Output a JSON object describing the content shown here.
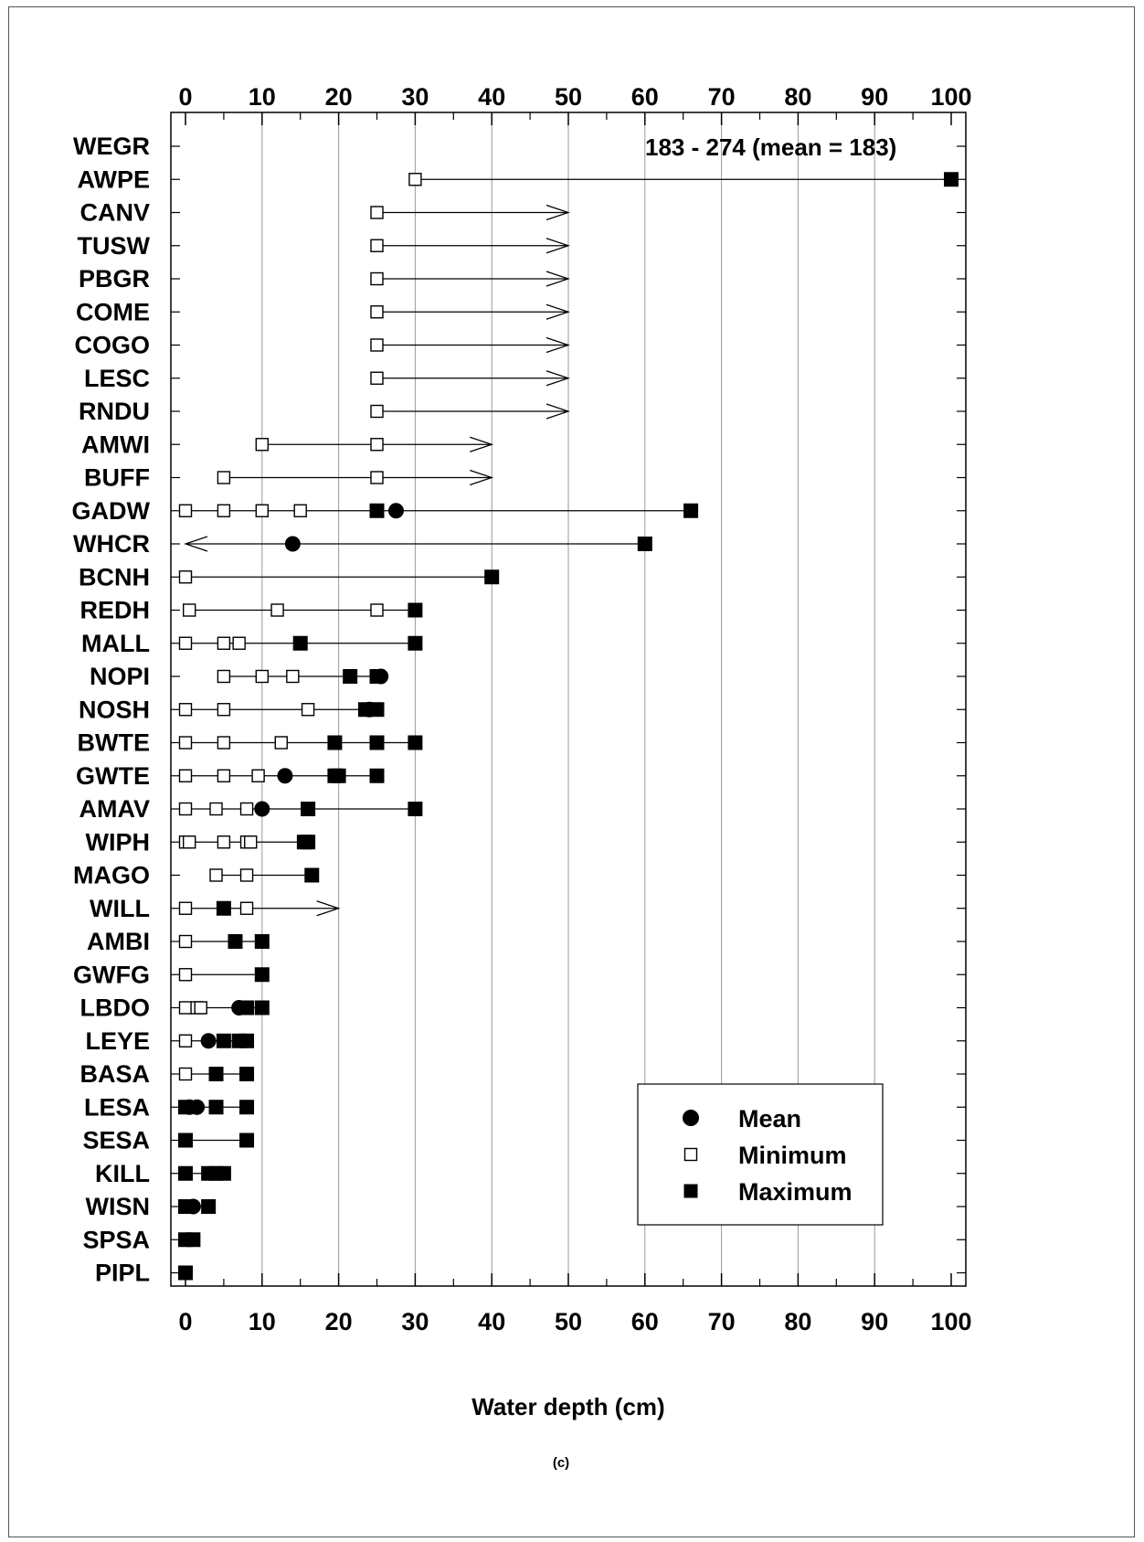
{
  "chart_data": {
    "type": "scatter",
    "title": "",
    "xlabel": "Water depth (cm)",
    "panel_label": "(c)",
    "xlim": [
      -2,
      102
    ],
    "xticks": [
      0,
      10,
      20,
      30,
      40,
      50,
      60,
      70,
      80,
      90,
      100
    ],
    "minor_xticks": [
      5,
      15,
      25,
      35,
      45,
      55,
      65,
      75,
      85,
      95
    ],
    "grid": "vertical",
    "legend_position": "bottom-right",
    "legend": [
      {
        "name": "Mean",
        "marker": "circle"
      },
      {
        "name": "Minimum",
        "marker": "open-square"
      },
      {
        "name": "Maximum",
        "marker": "filled-square"
      }
    ],
    "annotation": {
      "text": "183 - 274 (mean = 183)",
      "species": "WEGR"
    },
    "species": [
      {
        "code": "WEGR",
        "min": [],
        "max": [],
        "mean": [],
        "range": null,
        "arrow": null
      },
      {
        "code": "AWPE",
        "min": [
          30
        ],
        "max": [
          100
        ],
        "mean": [],
        "range": [
          30,
          100
        ],
        "arrow": null
      },
      {
        "code": "CANV",
        "min": [
          25
        ],
        "max": [],
        "mean": [],
        "range": [
          25,
          50
        ],
        "arrow": "right"
      },
      {
        "code": "TUSW",
        "min": [
          25
        ],
        "max": [],
        "mean": [],
        "range": [
          25,
          50
        ],
        "arrow": "right"
      },
      {
        "code": "PBGR",
        "min": [
          25
        ],
        "max": [],
        "mean": [],
        "range": [
          25,
          50
        ],
        "arrow": "right"
      },
      {
        "code": "COME",
        "min": [
          25
        ],
        "max": [],
        "mean": [],
        "range": [
          25,
          50
        ],
        "arrow": "right"
      },
      {
        "code": "COGO",
        "min": [
          25
        ],
        "max": [],
        "mean": [],
        "range": [
          25,
          50
        ],
        "arrow": "right"
      },
      {
        "code": "LESC",
        "min": [
          25
        ],
        "max": [],
        "mean": [],
        "range": [
          25,
          50
        ],
        "arrow": "right"
      },
      {
        "code": "RNDU",
        "min": [
          25
        ],
        "max": [],
        "mean": [],
        "range": [
          25,
          50
        ],
        "arrow": "right"
      },
      {
        "code": "AMWI",
        "min": [
          10,
          25
        ],
        "max": [],
        "mean": [],
        "range": [
          10,
          40
        ],
        "arrow": "right"
      },
      {
        "code": "BUFF",
        "min": [
          5,
          25
        ],
        "max": [],
        "mean": [],
        "range": [
          5,
          40
        ],
        "arrow": "right"
      },
      {
        "code": "GADW",
        "min": [
          0,
          5,
          10,
          15
        ],
        "max": [
          25,
          66
        ],
        "mean": [
          27.5
        ],
        "range": [
          0,
          66
        ],
        "arrow": null
      },
      {
        "code": "WHCR",
        "min": [],
        "max": [
          60
        ],
        "mean": [
          14
        ],
        "range": [
          0,
          60
        ],
        "arrow": "left"
      },
      {
        "code": "BCNH",
        "min": [
          0
        ],
        "max": [
          40
        ],
        "mean": [],
        "range": [
          0,
          40
        ],
        "arrow": null
      },
      {
        "code": "REDH",
        "min": [
          0.5,
          12,
          25
        ],
        "max": [
          30
        ],
        "mean": [],
        "range": [
          0.5,
          30
        ],
        "arrow": null
      },
      {
        "code": "MALL",
        "min": [
          0,
          5,
          7
        ],
        "max": [
          15,
          30
        ],
        "mean": [],
        "range": [
          0,
          30
        ],
        "arrow": null
      },
      {
        "code": "NOPI",
        "min": [
          5,
          10,
          14
        ],
        "max": [
          21.5,
          25
        ],
        "mean": [
          25.5
        ],
        "range": [
          5,
          25.5
        ],
        "arrow": null
      },
      {
        "code": "NOSH",
        "min": [
          0,
          5,
          16
        ],
        "max": [
          23.5,
          25
        ],
        "mean": [
          24
        ],
        "range": [
          0,
          25
        ],
        "arrow": null
      },
      {
        "code": "BWTE",
        "min": [
          0,
          5,
          12.5
        ],
        "max": [
          19.5,
          25,
          30
        ],
        "mean": [],
        "range": [
          0,
          30
        ],
        "arrow": null
      },
      {
        "code": "GWTE",
        "min": [
          0,
          5,
          9.5
        ],
        "max": [
          19.5,
          20,
          25
        ],
        "mean": [
          13
        ],
        "range": [
          0,
          25
        ],
        "arrow": null
      },
      {
        "code": "AMAV",
        "min": [
          0,
          4,
          8
        ],
        "max": [
          16,
          30
        ],
        "mean": [
          10
        ],
        "range": [
          0,
          30
        ],
        "arrow": null
      },
      {
        "code": "WIPH",
        "min": [
          0,
          0.5,
          5,
          8,
          8.5
        ],
        "max": [
          15.5,
          16
        ],
        "mean": [],
        "range": [
          0,
          16
        ],
        "arrow": null
      },
      {
        "code": "MAGO",
        "min": [
          4,
          8
        ],
        "max": [
          16.5
        ],
        "mean": [],
        "range": [
          4,
          16.5
        ],
        "arrow": null
      },
      {
        "code": "WILL",
        "min": [
          0,
          8
        ],
        "max": [
          5
        ],
        "mean": [],
        "range": [
          0,
          20
        ],
        "arrow": "right"
      },
      {
        "code": "AMBI",
        "min": [
          0
        ],
        "max": [
          6.5,
          10
        ],
        "mean": [],
        "range": [
          0,
          10
        ],
        "arrow": null
      },
      {
        "code": "GWFG",
        "min": [
          0
        ],
        "max": [
          10
        ],
        "mean": [],
        "range": [
          0,
          10
        ],
        "arrow": null
      },
      {
        "code": "LBDO",
        "min": [
          0,
          1.5,
          2
        ],
        "max": [
          8,
          10
        ],
        "mean": [
          7
        ],
        "range": [
          0,
          10
        ],
        "arrow": null
      },
      {
        "code": "LEYE",
        "min": [
          0
        ],
        "max": [
          5,
          7,
          8
        ],
        "mean": [
          3
        ],
        "range": [
          0,
          8
        ],
        "arrow": null
      },
      {
        "code": "BASA",
        "min": [
          0
        ],
        "max": [
          4,
          8
        ],
        "mean": [],
        "range": [
          0,
          8
        ],
        "arrow": null
      },
      {
        "code": "LESA",
        "min": [],
        "max": [
          0,
          4,
          8
        ],
        "mean": [
          0.5,
          1.5
        ],
        "range": [
          0,
          8
        ],
        "arrow": null
      },
      {
        "code": "SESA",
        "min": [],
        "max": [
          0,
          8
        ],
        "mean": [],
        "range": [
          0,
          8
        ],
        "arrow": null
      },
      {
        "code": "KILL",
        "min": [],
        "max": [
          0,
          3,
          4,
          5
        ],
        "mean": [],
        "range": [
          0,
          5
        ],
        "arrow": null
      },
      {
        "code": "WISN",
        "min": [],
        "max": [
          0,
          3
        ],
        "mean": [
          1
        ],
        "range": [
          0,
          3
        ],
        "arrow": null
      },
      {
        "code": "SPSA",
        "min": [],
        "max": [
          0,
          1
        ],
        "mean": [],
        "range": [
          0,
          1
        ],
        "arrow": null
      },
      {
        "code": "PIPL",
        "min": [],
        "max": [
          0
        ],
        "mean": [],
        "range": null,
        "arrow": null
      }
    ]
  },
  "colors": {
    "ink": "#000000",
    "grid": "#9a9a9a",
    "frame": "#555555"
  }
}
